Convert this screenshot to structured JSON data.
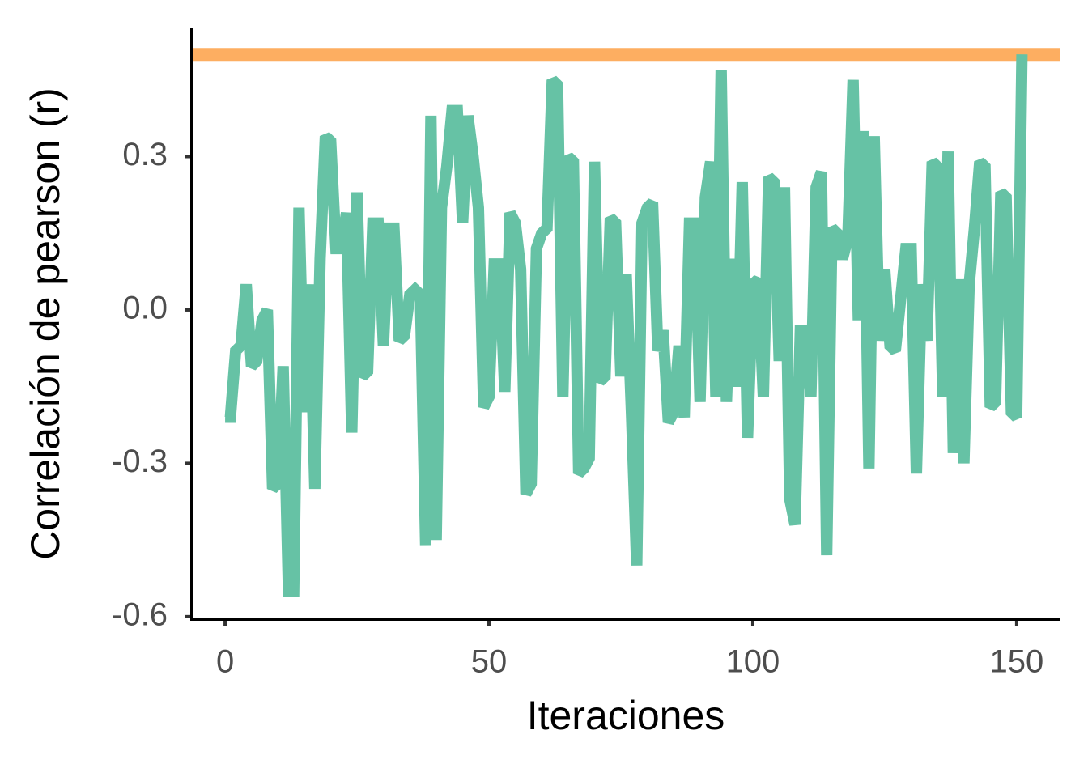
{
  "chart_data": {
    "type": "line",
    "xlabel": "Iteraciones",
    "ylabel": "Correlación de pearson (r)",
    "x": [
      0,
      1,
      2,
      3,
      4,
      5,
      6,
      7,
      8,
      9,
      10,
      11,
      12,
      13,
      14,
      15,
      16,
      17,
      18,
      19,
      20,
      21,
      22,
      23,
      24,
      25,
      26,
      27,
      28,
      29,
      30,
      31,
      32,
      33,
      34,
      35,
      36,
      37,
      38,
      39,
      40,
      41,
      42,
      43,
      44,
      45,
      46,
      47,
      48,
      49,
      50,
      51,
      52,
      53,
      54,
      55,
      56,
      57,
      58,
      59,
      60,
      61,
      62,
      63,
      64,
      65,
      66,
      67,
      68,
      69,
      70,
      71,
      72,
      73,
      74,
      75,
      76,
      77,
      78,
      79,
      80,
      81,
      82,
      83,
      84,
      85,
      86,
      87,
      88,
      89,
      90,
      91,
      92,
      93,
      94,
      95,
      96,
      97,
      98,
      99,
      100,
      101,
      102,
      103,
      104,
      105,
      106,
      107,
      108,
      109,
      110,
      111,
      112,
      113,
      114,
      115,
      116,
      117,
      118,
      119,
      120,
      121,
      122,
      123,
      124,
      125,
      126,
      127,
      128,
      129,
      130,
      131,
      132,
      133,
      134,
      135,
      136,
      137,
      138,
      139,
      140,
      141,
      142,
      143,
      144,
      145,
      146,
      147,
      148,
      149,
      150,
      151
    ],
    "series": [
      {
        "color": "#66c2a5",
        "values": [
          -0.21,
          -0.21,
          -0.08,
          -0.07,
          0.05,
          -0.11,
          -0.1,
          -0.02,
          0.0,
          -0.35,
          -0.34,
          -0.11,
          -0.55,
          -0.55,
          0.2,
          -0.2,
          0.05,
          -0.35,
          0.1,
          0.34,
          0.33,
          0.12,
          0.12,
          0.19,
          -0.24,
          0.23,
          -0.13,
          -0.12,
          0.17,
          0.17,
          -0.07,
          0.16,
          0.16,
          -0.06,
          -0.05,
          0.03,
          0.04,
          0.03,
          -0.46,
          0.38,
          -0.45,
          0.2,
          0.28,
          0.39,
          0.39,
          0.17,
          0.38,
          0.3,
          0.2,
          -0.19,
          -0.17,
          0.09,
          0.09,
          -0.16,
          0.19,
          0.17,
          0.08,
          -0.36,
          -0.34,
          0.12,
          0.15,
          0.16,
          0.45,
          0.44,
          -0.17,
          0.3,
          0.29,
          -0.32,
          -0.31,
          -0.29,
          0.29,
          -0.14,
          -0.13,
          0.18,
          0.17,
          -0.13,
          0.07,
          -0.2,
          -0.5,
          0.17,
          0.2,
          0.21,
          -0.08,
          -0.04,
          -0.22,
          -0.2,
          -0.07,
          -0.21,
          0.17,
          0.17,
          -0.18,
          0.22,
          0.29,
          -0.17,
          0.47,
          -0.18,
          0.1,
          -0.15,
          0.25,
          -0.25,
          0.05,
          0.06,
          -0.17,
          0.26,
          0.25,
          -0.1,
          0.24,
          -0.37,
          -0.42,
          -0.04,
          -0.04,
          -0.17,
          0.24,
          0.27,
          -0.48,
          0.16,
          0.15,
          0.1,
          0.14,
          0.45,
          -0.02,
          0.35,
          -0.31,
          0.34,
          -0.06,
          0.08,
          -0.07,
          -0.08,
          0.02,
          0.12,
          0.12,
          -0.32,
          0.05,
          -0.06,
          0.29,
          0.28,
          -0.17,
          0.31,
          -0.28,
          0.06,
          -0.3,
          0.05,
          0.16,
          0.29,
          0.28,
          -0.19,
          -0.18,
          0.23,
          0.22,
          -0.2,
          -0.21,
          0.5
        ]
      }
    ],
    "reference_line": {
      "value": 0.5,
      "color": "#fdae61"
    },
    "xlim": [
      -6.3,
      158.3
    ],
    "ylim": [
      -0.605,
      0.551
    ],
    "xticks": [
      0,
      50,
      100,
      150
    ],
    "yticks": [
      {
        "value": 0.3,
        "label": "0.3"
      },
      {
        "value": 0.0,
        "label": "0.0"
      },
      {
        "value": -0.3,
        "label": "-0.3"
      },
      {
        "value": -0.6,
        "label": "-0.6"
      }
    ]
  }
}
